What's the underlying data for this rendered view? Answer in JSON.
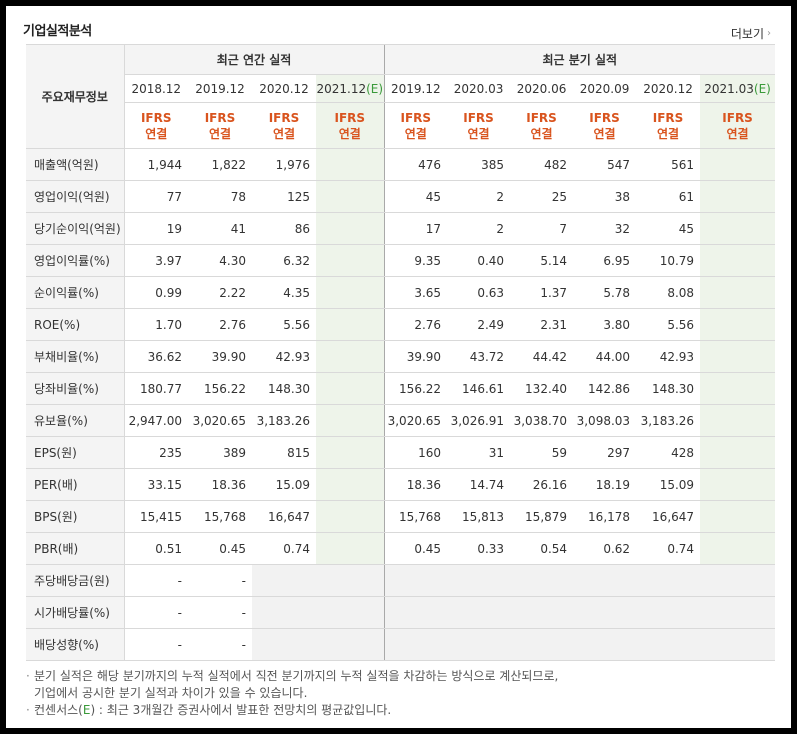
{
  "title": "기업실적분석",
  "more_label": "더보기",
  "row_header": "주요재무정보",
  "group_annual": "최근 연간 실적",
  "group_quarter": "최근 분기 실적",
  "annual_dates": [
    "2018.12",
    "2019.12",
    "2020.12",
    "2021.12"
  ],
  "quarter_dates": [
    "2019.12",
    "2020.03",
    "2020.06",
    "2020.09",
    "2020.12",
    "2021.03"
  ],
  "estimate_mark": "(E)",
  "ifrs_line1": "IFRS",
  "ifrs_line2": "연결",
  "rows": [
    {
      "label": "매출액(억원)",
      "annual": [
        "1,944",
        "1,822",
        "1,976",
        ""
      ],
      "quarter": [
        "476",
        "385",
        "482",
        "547",
        "561",
        ""
      ]
    },
    {
      "label": "영업이익(억원)",
      "annual": [
        "77",
        "78",
        "125",
        ""
      ],
      "quarter": [
        "45",
        "2",
        "25",
        "38",
        "61",
        ""
      ]
    },
    {
      "label": "당기순이익(억원)",
      "annual": [
        "19",
        "41",
        "86",
        ""
      ],
      "quarter": [
        "17",
        "2",
        "7",
        "32",
        "45",
        ""
      ]
    },
    {
      "label": "영업이익률(%)",
      "annual": [
        "3.97",
        "4.30",
        "6.32",
        ""
      ],
      "quarter": [
        "9.35",
        "0.40",
        "5.14",
        "6.95",
        "10.79",
        ""
      ]
    },
    {
      "label": "순이익률(%)",
      "annual": [
        "0.99",
        "2.22",
        "4.35",
        ""
      ],
      "quarter": [
        "3.65",
        "0.63",
        "1.37",
        "5.78",
        "8.08",
        ""
      ]
    },
    {
      "label": "ROE(%)",
      "annual": [
        "1.70",
        "2.76",
        "5.56",
        ""
      ],
      "quarter": [
        "2.76",
        "2.49",
        "2.31",
        "3.80",
        "5.56",
        ""
      ]
    },
    {
      "label": "부채비율(%)",
      "annual": [
        "36.62",
        "39.90",
        "42.93",
        ""
      ],
      "quarter": [
        "39.90",
        "43.72",
        "44.42",
        "44.00",
        "42.93",
        ""
      ]
    },
    {
      "label": "당좌비율(%)",
      "annual": [
        "180.77",
        "156.22",
        "148.30",
        ""
      ],
      "quarter": [
        "156.22",
        "146.61",
        "132.40",
        "142.86",
        "148.30",
        ""
      ]
    },
    {
      "label": "유보율(%)",
      "annual": [
        "2,947.00",
        "3,020.65",
        "3,183.26",
        ""
      ],
      "quarter": [
        "3,020.65",
        "3,026.91",
        "3,038.70",
        "3,098.03",
        "3,183.26",
        ""
      ]
    },
    {
      "label": "EPS(원)",
      "annual": [
        "235",
        "389",
        "815",
        ""
      ],
      "quarter": [
        "160",
        "31",
        "59",
        "297",
        "428",
        ""
      ]
    },
    {
      "label": "PER(배)",
      "annual": [
        "33.15",
        "18.36",
        "15.09",
        ""
      ],
      "quarter": [
        "18.36",
        "14.74",
        "26.16",
        "18.19",
        "15.09",
        ""
      ]
    },
    {
      "label": "BPS(원)",
      "annual": [
        "15,415",
        "15,768",
        "16,647",
        ""
      ],
      "quarter": [
        "15,768",
        "15,813",
        "15,879",
        "16,178",
        "16,647",
        ""
      ]
    },
    {
      "label": "PBR(배)",
      "annual": [
        "0.51",
        "0.45",
        "0.74",
        ""
      ],
      "quarter": [
        "0.45",
        "0.33",
        "0.54",
        "0.62",
        "0.74",
        ""
      ]
    },
    {
      "label": "주당배당금(원)",
      "annual": [
        "-",
        "-",
        "",
        ""
      ],
      "quarter": [
        "",
        "",
        "",
        "",
        "",
        ""
      ]
    },
    {
      "label": "시가배당률(%)",
      "annual": [
        "-",
        "-",
        "",
        ""
      ],
      "quarter": [
        "",
        "",
        "",
        "",
        "",
        ""
      ]
    },
    {
      "label": "배당성향(%)",
      "annual": [
        "-",
        "-",
        "",
        ""
      ],
      "quarter": [
        "",
        "",
        "",
        "",
        "",
        ""
      ]
    }
  ],
  "notes": {
    "line1": "분기 실적은 해당 분기까지의 누적 실적에서 직전 분기까지의 누적 실적을 차감하는 방식으로 계산되므로,",
    "line2": "기업에서 공시한 분기 실적과 차이가 있을 수 있습니다.",
    "line3_prefix": "컨센서스(",
    "line3_e": "E",
    "line3_suffix": ") : 최근 3개월간 증권사에서 발표한 전망치의 평균값입니다."
  },
  "colors": {
    "ifrs_text": "#d9541e",
    "estimate_bg": "#eef4ea",
    "estimate_mark": "#3a9a3a",
    "header_bg": "#f4f4f4"
  }
}
